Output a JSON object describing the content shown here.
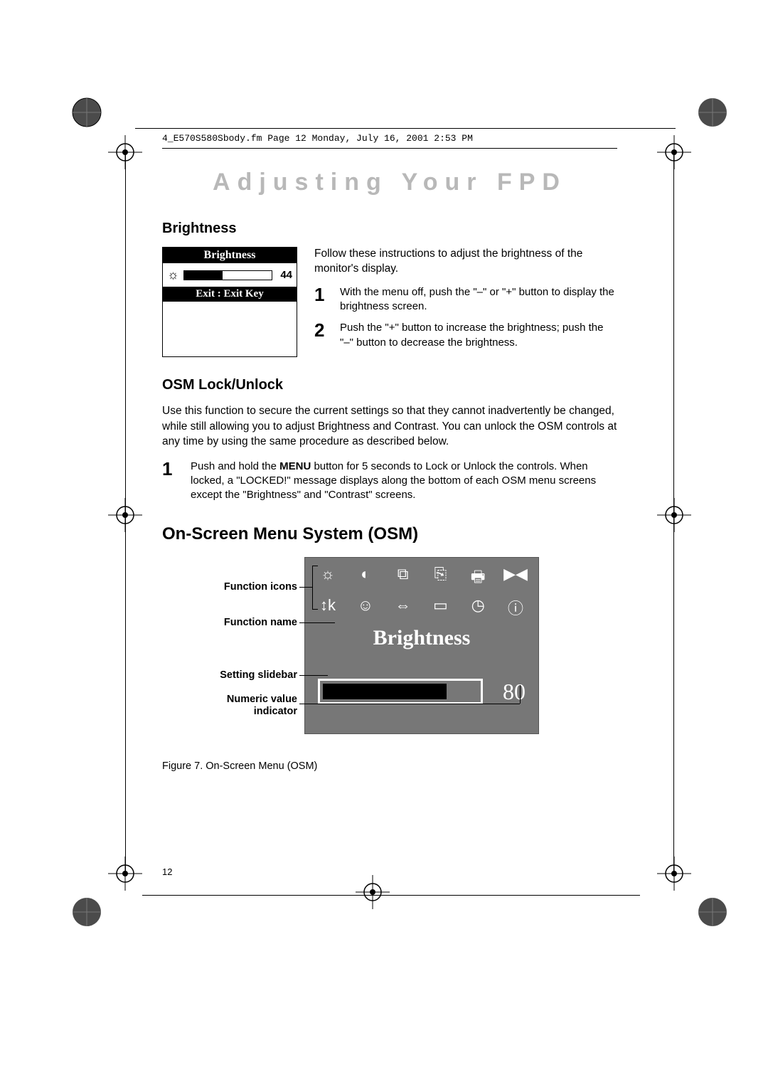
{
  "meta": {
    "header": "4_E570S580Sbody.fm  Page 12  Monday, July 16, 2001  2:53 PM",
    "page_number": "12"
  },
  "title": "Adjusting Your FPD",
  "brightness": {
    "heading": "Brightness",
    "osd_title": "Brightness",
    "osd_value": "44",
    "osd_fill_pct": 44,
    "osd_exit": "Exit : Exit Key",
    "intro": "Follow these instructions to adjust the brightness of the monitor's display.",
    "steps": [
      {
        "num": "1",
        "text": "With the menu off, push the \"–\" or \"+\" button to display the brightness screen."
      },
      {
        "num": "2",
        "text": "Push the \"+\" button to increase the brightness; push the \"–\" button to decrease the brightness."
      }
    ]
  },
  "osm_lock": {
    "heading": "OSM Lock/Unlock",
    "para": "Use this function to secure the current settings so that they cannot inadvertently be changed, while still allowing you to adjust Brightness and Contrast. You can unlock the OSM controls at any time by using the same procedure as described below.",
    "step_num": "1",
    "step_pre": "Push and hold the ",
    "step_bold": "MENU",
    "step_post": " button for 5 seconds to Lock or Unlock the controls. When locked, a \"LOCKED!\" message displays along the bottom of each OSM menu screens except the \"Brightness\" and \"Contrast\" screens."
  },
  "osm": {
    "heading": "On-Screen Menu System (OSM)",
    "labels": {
      "icons": "Function icons",
      "name": "Function name",
      "slider": "Setting slidebar",
      "value": "Numeric value\nindicator"
    },
    "panel": {
      "func_name": "Brightness",
      "value": "80",
      "fill_pct": 80,
      "icon_rows": [
        [
          "☼",
          "◐",
          "⧉",
          "⎘",
          "🖶",
          "▶◀"
        ],
        [
          "↕k",
          "☺",
          "⇔",
          "▭",
          "◷",
          "ⓘ"
        ]
      ],
      "bg_color": "#777777",
      "text_color": "#ffffff"
    },
    "caption": "Figure 7.  On-Screen Menu (OSM)"
  }
}
